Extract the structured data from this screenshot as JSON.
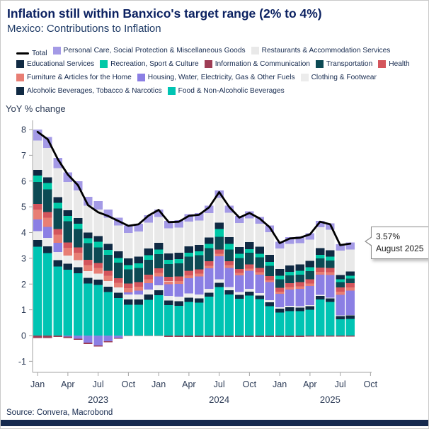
{
  "header": {
    "title": "Inflation still within Banxico's target range (2% to 4%)",
    "subtitle": "Mexico: Contributions to Inflation"
  },
  "axis": {
    "y_label": "YoY % change",
    "y_ticks": [
      8,
      7,
      6,
      5,
      4,
      3,
      2,
      1,
      0,
      -1
    ],
    "x_ticks": [
      {
        "label": "Jan",
        "m": 0
      },
      {
        "label": "Apr",
        "m": 3
      },
      {
        "label": "Jul",
        "m": 6
      },
      {
        "label": "Oct",
        "m": 9
      },
      {
        "label": "Jan",
        "m": 12
      },
      {
        "label": "Apr",
        "m": 15
      },
      {
        "label": "Jul",
        "m": 18
      },
      {
        "label": "Oct",
        "m": 21
      },
      {
        "label": "Jan",
        "m": 24
      },
      {
        "label": "Apr",
        "m": 27
      },
      {
        "label": "Jul",
        "m": 30
      },
      {
        "label": "Oct",
        "m": 33
      }
    ],
    "years": [
      {
        "label": "2023",
        "m": 6
      },
      {
        "label": "2024",
        "m": 18
      },
      {
        "label": "2025",
        "m": 29
      }
    ]
  },
  "colors": {
    "Total": "#000000",
    "Personal Care, Social Protection & Miscellaneous Goods": "#a49ae6",
    "Restaurants & Accommodation Services": "#e9e9e9",
    "Educational Services": "#102a43",
    "Recreation, Sport & Culture": "#00c9a7",
    "Information & Communication": "#9e3d55",
    "Transportation": "#0c4a54",
    "Health": "#d4555c",
    "Furniture & Articles for the Home": "#e87e74",
    "Housing, Water, Electricity, Gas & Other Fuels": "#8b7fe4",
    "Clothing & Footwear": "#ececec",
    "Alcoholic Beverages, Tobacco & Narcotics": "#102a43",
    "Food & Non-Alcoholic Beverages": "#00c4b3"
  },
  "legend": {
    "rows": [
      [
        "Total",
        "Personal Care, Social Protection & Miscellaneous Goods",
        "Restaurants & Accommodation Services"
      ],
      [
        "Educational Services",
        "Recreation, Sport & Culture",
        "Information & Communication",
        "Transportation",
        "Health"
      ],
      [
        "Furniture & Articles for the Home",
        "Housing, Water, Electricity, Gas & Other Fuels",
        "Clothing & Footwear"
      ],
      [
        "Alcoholic Beverages, Tobacco & Narcotics",
        "Food & Non-Alcoholic Beverages"
      ]
    ]
  },
  "callout": {
    "value": "3.57%",
    "date": "August 2025"
  },
  "footer": {
    "source": "Source: Convera, Macrobond"
  },
  "chart_data": {
    "type": "bar",
    "stacked": true,
    "title": "Mexico: Contributions to Inflation",
    "ylabel": "YoY % change",
    "ylim": [
      -1,
      8
    ],
    "grid": false,
    "legend_position": "top",
    "x": [
      "2023-01",
      "2023-02",
      "2023-03",
      "2023-04",
      "2023-05",
      "2023-06",
      "2023-07",
      "2023-08",
      "2023-09",
      "2023-10",
      "2023-11",
      "2023-12",
      "2024-01",
      "2024-02",
      "2024-03",
      "2024-04",
      "2024-05",
      "2024-06",
      "2024-07",
      "2024-08",
      "2024-09",
      "2024-10",
      "2024-11",
      "2024-12",
      "2025-01",
      "2025-02",
      "2025-03",
      "2025-04",
      "2025-05",
      "2025-06",
      "2025-07",
      "2025-08"
    ],
    "series": [
      {
        "name": "Food & Non-Alcoholic Beverages",
        "values": [
          3.45,
          3.2,
          2.68,
          2.55,
          2.42,
          2.02,
          1.96,
          1.69,
          1.46,
          1.2,
          1.2,
          1.39,
          1.57,
          1.18,
          1.16,
          1.3,
          1.28,
          1.51,
          1.89,
          1.6,
          1.43,
          1.56,
          1.41,
          1.14,
          0.9,
          0.95,
          0.95,
          1.0,
          1.4,
          1.3,
          0.63,
          0.65
        ]
      },
      {
        "name": "Alcoholic Beverages, Tobacco & Narcotics",
        "values": [
          0.26,
          0.26,
          0.25,
          0.24,
          0.23,
          0.22,
          0.21,
          0.21,
          0.2,
          0.2,
          0.2,
          0.2,
          0.19,
          0.18,
          0.18,
          0.17,
          0.17,
          0.16,
          0.16,
          0.16,
          0.15,
          0.15,
          0.15,
          0.15,
          0.15,
          0.15,
          0.14,
          0.14,
          0.14,
          0.14,
          0.13,
          0.13
        ]
      },
      {
        "name": "Clothing & Footwear",
        "values": [
          0.35,
          0.34,
          0.32,
          0.32,
          0.28,
          0.26,
          0.24,
          0.22,
          0.21,
          0.2,
          0.2,
          0.2,
          0.19,
          0.18,
          0.17,
          0.16,
          0.15,
          0.14,
          0.13,
          0.12,
          0.11,
          0.1,
          0.09,
          0.08,
          0.05,
          0.05,
          0.05,
          0.04,
          0.04,
          0.03,
          0.02,
          0.02
        ]
      },
      {
        "name": "Housing, Water, Electricity, Gas & Other Fuels",
        "values": [
          0.45,
          0.42,
          0.35,
          -0.04,
          -0.12,
          -0.28,
          -0.38,
          -0.22,
          -0.1,
          0.08,
          0.15,
          0.25,
          0.35,
          0.45,
          0.5,
          0.6,
          0.7,
          0.8,
          0.9,
          0.75,
          0.65,
          0.7,
          0.72,
          0.7,
          0.52,
          0.64,
          0.67,
          0.74,
          0.79,
          0.88,
          0.8,
          0.95
        ]
      },
      {
        "name": "Furniture & Articles for the Home",
        "values": [
          0.38,
          0.36,
          0.32,
          0.3,
          0.28,
          0.24,
          0.22,
          0.2,
          0.18,
          0.16,
          0.15,
          0.14,
          0.13,
          0.12,
          0.11,
          0.11,
          0.1,
          0.1,
          0.1,
          0.1,
          0.09,
          0.09,
          0.09,
          0.08,
          0.08,
          0.09,
          0.1,
          0.1,
          0.11,
          0.11,
          0.12,
          0.12
        ]
      },
      {
        "name": "Health",
        "values": [
          0.22,
          0.22,
          0.22,
          0.21,
          0.21,
          0.2,
          0.19,
          0.19,
          0.18,
          0.18,
          0.18,
          0.18,
          0.18,
          0.17,
          0.17,
          0.17,
          0.17,
          0.17,
          0.16,
          0.16,
          0.16,
          0.16,
          0.16,
          0.16,
          0.16,
          0.16,
          0.16,
          0.16,
          0.16,
          0.16,
          0.17,
          0.17
        ]
      },
      {
        "name": "Transportation",
        "values": [
          0.85,
          0.88,
          0.8,
          0.82,
          0.72,
          0.65,
          0.6,
          0.62,
          0.6,
          0.55,
          0.55,
          0.58,
          0.55,
          0.5,
          0.52,
          0.55,
          0.55,
          0.52,
          0.5,
          0.45,
          0.42,
          0.45,
          0.42,
          0.4,
          0.32,
          0.3,
          0.3,
          0.32,
          0.35,
          0.3,
          0.2,
          0.18
        ]
      },
      {
        "name": "Information & Communication",
        "values": [
          -0.09,
          -0.09,
          -0.05,
          -0.05,
          -0.04,
          -0.05,
          -0.05,
          -0.04,
          -0.03,
          -0.02,
          -0.02,
          -0.02,
          -0.02,
          -0.06,
          -0.06,
          -0.06,
          -0.06,
          -0.06,
          -0.06,
          -0.06,
          -0.06,
          -0.06,
          -0.06,
          -0.06,
          -0.05,
          -0.05,
          -0.05,
          -0.04,
          -0.04,
          -0.04,
          -0.04,
          -0.04
        ]
      },
      {
        "name": "Recreation, Sport & Culture",
        "values": [
          0.25,
          0.24,
          0.22,
          0.2,
          0.2,
          0.19,
          0.22,
          0.2,
          0.18,
          0.17,
          0.17,
          0.18,
          0.18,
          0.16,
          0.16,
          0.16,
          0.15,
          0.16,
          0.3,
          0.22,
          0.16,
          0.15,
          0.14,
          0.15,
          0.14,
          0.13,
          0.14,
          0.15,
          0.15,
          0.15,
          0.12,
          0.11
        ]
      },
      {
        "name": "Educational Services",
        "values": [
          0.22,
          0.22,
          0.22,
          0.22,
          0.22,
          0.22,
          0.22,
          0.23,
          0.26,
          0.26,
          0.26,
          0.26,
          0.26,
          0.25,
          0.25,
          0.25,
          0.25,
          0.25,
          0.25,
          0.26,
          0.27,
          0.27,
          0.27,
          0.27,
          0.26,
          0.25,
          0.25,
          0.25,
          0.25,
          0.24,
          0.16,
          0.16
        ]
      },
      {
        "name": "Restaurants & Accommodation Services",
        "values": [
          1.15,
          1.15,
          1.12,
          1.1,
          1.08,
          1.05,
          1.03,
          1.02,
          1.0,
          0.98,
          0.98,
          1.0,
          1.0,
          0.98,
          0.97,
          0.96,
          0.95,
          0.95,
          0.96,
          0.95,
          0.93,
          0.92,
          0.9,
          0.88,
          0.8,
          0.84,
          0.83,
          0.82,
          0.82,
          0.8,
          0.95,
          0.85
        ]
      },
      {
        "name": "Personal Care, Social Protection & Miscellaneous Goods",
        "values": [
          0.42,
          0.42,
          0.4,
          0.38,
          0.36,
          0.34,
          0.33,
          0.32,
          0.31,
          0.3,
          0.3,
          0.3,
          0.3,
          0.29,
          0.29,
          0.28,
          0.28,
          0.28,
          0.28,
          0.28,
          0.27,
          0.27,
          0.26,
          0.26,
          0.26,
          0.26,
          0.26,
          0.25,
          0.25,
          0.25,
          0.25,
          0.27
        ]
      }
    ],
    "total": {
      "name": "Total",
      "values": [
        7.91,
        7.62,
        6.85,
        6.25,
        5.84,
        5.06,
        4.79,
        4.64,
        4.45,
        4.26,
        4.32,
        4.66,
        4.88,
        4.4,
        4.42,
        4.65,
        4.69,
        4.98,
        5.57,
        4.99,
        4.58,
        4.76,
        4.55,
        4.21,
        3.59,
        3.77,
        3.8,
        3.93,
        4.42,
        4.32,
        3.51,
        3.57
      ]
    }
  }
}
